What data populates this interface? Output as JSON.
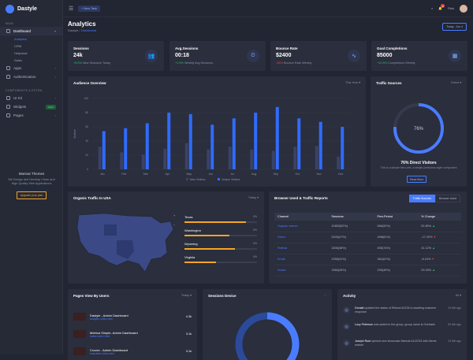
{
  "brand": {
    "name": "Dastyle"
  },
  "sidebar": {
    "section_main": "MAIN",
    "dashboard": "Dashboard",
    "subs": [
      "Analytics",
      "CRM",
      "Helpdesk",
      "Sales"
    ],
    "apps": "Apps",
    "authentication": "Authentication",
    "section_components": "COMPONENTS & EXTRA",
    "ui_kit": "UI Kit",
    "widgets": "Widgets",
    "widgets_badge": "NEW",
    "pages": "Pages",
    "promo": {
      "title": "Mannat Themes",
      "text": "We Design and Develop Clean and High Quality Web Applications",
      "button": "Upgrade your plan"
    }
  },
  "topbar": {
    "new_task": "+ New Task",
    "user": "Rick",
    "notif_count": "2"
  },
  "header": {
    "title": "Analytics",
    "crumb_root": "Dastyle",
    "crumb_current": "Dashboard",
    "date": "Today : Jun 4"
  },
  "stats": [
    {
      "title": "Sessions",
      "value": "24k",
      "delta": "+8.5%",
      "note": "New Sessions Today",
      "dir": "up",
      "icon": "👥"
    },
    {
      "title": "Avg.Sessions",
      "value": "00:18",
      "delta": "+1.5%",
      "note": "Weekly Avg.Sessions",
      "dir": "up",
      "icon": "⏲"
    },
    {
      "title": "Bounce Rate",
      "value": "$2400",
      "delta": "-35%",
      "note": "Bounce Rate Weekly",
      "dir": "down",
      "icon": "∿"
    },
    {
      "title": "Goal Completions",
      "value": "85000",
      "delta": "+10.5%",
      "note": "Completions Weekly",
      "dir": "up",
      "icon": "▦"
    }
  ],
  "audience": {
    "title": "Audience Overview",
    "filter": "This Year ▾",
    "legend_new": "New Visitors",
    "legend_unique": "Unique Visitors"
  },
  "chart_data": {
    "type": "bar",
    "title": "Audience Overview",
    "categories": [
      "Jan",
      "Feb",
      "Mar",
      "Apr",
      "May",
      "Jun",
      "Jul",
      "Aug",
      "Sep",
      "Oct",
      "Nov",
      "Dec"
    ],
    "series": [
      {
        "name": "New Visitors",
        "values": [
          32,
          24,
          21,
          29,
          37,
          28,
          32,
          28,
          26,
          32,
          33,
          18
        ]
      },
      {
        "name": "Unique Visitors",
        "values": [
          54,
          58,
          65,
          80,
          78,
          63,
          72,
          80,
          88,
          72,
          67,
          60
        ]
      }
    ],
    "yticks": [
      "0",
      "20",
      "40",
      "60",
      "80",
      "100"
    ],
    "ylabel": "Visitors",
    "ylim": [
      0,
      100
    ]
  },
  "traffic": {
    "title": "Traffic Sources",
    "filter": "Direct ▾",
    "percent": "76%",
    "value": 76,
    "label": "76% Direct Visitors",
    "desc": "This is a simple hero unit, a simple jumbotron-style component",
    "button": "Read More"
  },
  "usa": {
    "title": "Organic Traffic In USA",
    "filter": "Today ▾",
    "states": [
      {
        "name": "Texas",
        "pct": "0%",
        "value": 85
      },
      {
        "name": "Washington",
        "pct": "0%",
        "value": 62
      },
      {
        "name": "Wyoming",
        "pct": "0%",
        "value": 70
      },
      {
        "name": "Virginia",
        "pct": "0%",
        "value": 44
      }
    ]
  },
  "browser": {
    "title": "Browser Used & Traffic Reports",
    "tab1": "Traffic Sources",
    "tab2": "Browser Used",
    "headers": [
      "Channel",
      "Sessions",
      "Prev.Period",
      "% Change"
    ],
    "rows": [
      {
        "c": "Organic search",
        "s": "10853(52%)",
        "p": "566(92%)",
        "ch": "52.80%",
        "dir": "up"
      },
      {
        "c": "Direct",
        "s": "2545(47%)",
        "p": "498(81%)",
        "ch": "-17.20%",
        "dir": "down"
      },
      {
        "c": "Referal",
        "s": "1836(38%)",
        "p": "455(74%)",
        "ch": "41.12%",
        "dir": "up"
      },
      {
        "c": "Email",
        "s": "1958(31%)",
        "p": "361(61%)",
        "ch": "-8.24%",
        "dir": "down"
      },
      {
        "c": "Social",
        "s": "1566(26%)",
        "p": "299(49%)",
        "ch": "29.33%",
        "dir": "up"
      }
    ]
  },
  "pages": {
    "title": "Pages View By Users",
    "filter": "Today ▾",
    "items": [
      {
        "name": "Dastyle - Admin Dashboard",
        "url": "analytic-index.html",
        "stat": "4.3k"
      },
      {
        "name": "Metrica Simple- Admin Dashboard",
        "url": "sales-index.html",
        "stat": "3.1k"
      },
      {
        "name": "Crovex - Admin Dashboard",
        "url": "helpdesk-index.html",
        "stat": "3.1k"
      }
    ]
  },
  "device": {
    "title": "Sessions Device"
  },
  "activity": {
    "title": "Activity",
    "filter": "All ▾",
    "items": [
      {
        "who": "Donald",
        "text": "updated the status of Refund #1234 to awaiting customer response",
        "time": "10 Min ago"
      },
      {
        "who": "Lucy Peterson",
        "text": "was added to the group, group name is Overtake",
        "time": "50 Min ago"
      },
      {
        "who": "Joseph Rust",
        "text": "opened new showcase Mannat #112233 with theme market",
        "time": "10 Min ago"
      }
    ]
  }
}
